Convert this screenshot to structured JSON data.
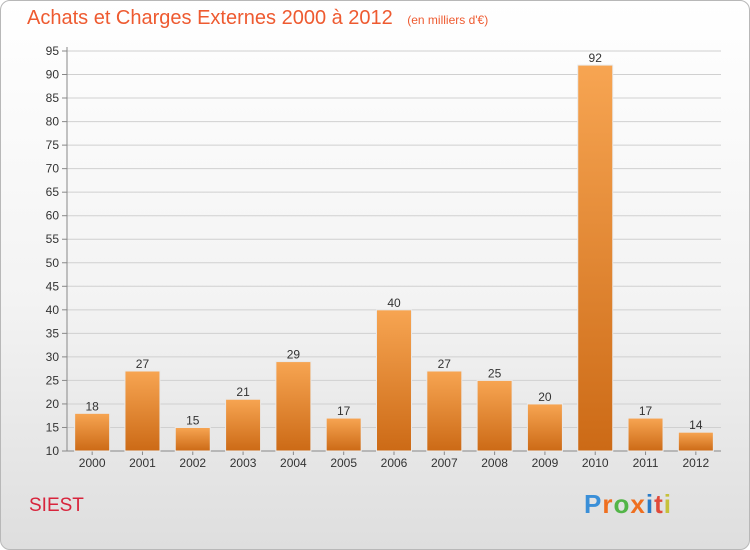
{
  "chart_data": {
    "type": "bar",
    "title": "Achats et Charges Externes 2000 à 2012",
    "subtitle": "(en milliers d'€)",
    "categories": [
      "2000",
      "2001",
      "2002",
      "2003",
      "2004",
      "2005",
      "2006",
      "2007",
      "2008",
      "2009",
      "2010",
      "2011",
      "2012"
    ],
    "values": [
      18,
      27,
      15,
      21,
      29,
      17,
      40,
      27,
      25,
      20,
      92,
      17,
      14
    ],
    "ylim": [
      10,
      95
    ],
    "yticks": [
      10,
      15,
      20,
      25,
      30,
      35,
      40,
      45,
      50,
      55,
      60,
      65,
      70,
      75,
      80,
      85,
      90,
      95
    ],
    "grid": true,
    "legend": "none",
    "bar_color_top": "#f7a552",
    "bar_color_bottom": "#cc6a16"
  },
  "footer": {
    "commune": "SIEST",
    "brand": "Proxiti",
    "brand_colors": [
      "#3a8fd8",
      "#ef6f1f",
      "#53b548",
      "#ef6f1f",
      "#2a7cc7",
      "#e04a3a",
      "#c6c13a"
    ]
  }
}
